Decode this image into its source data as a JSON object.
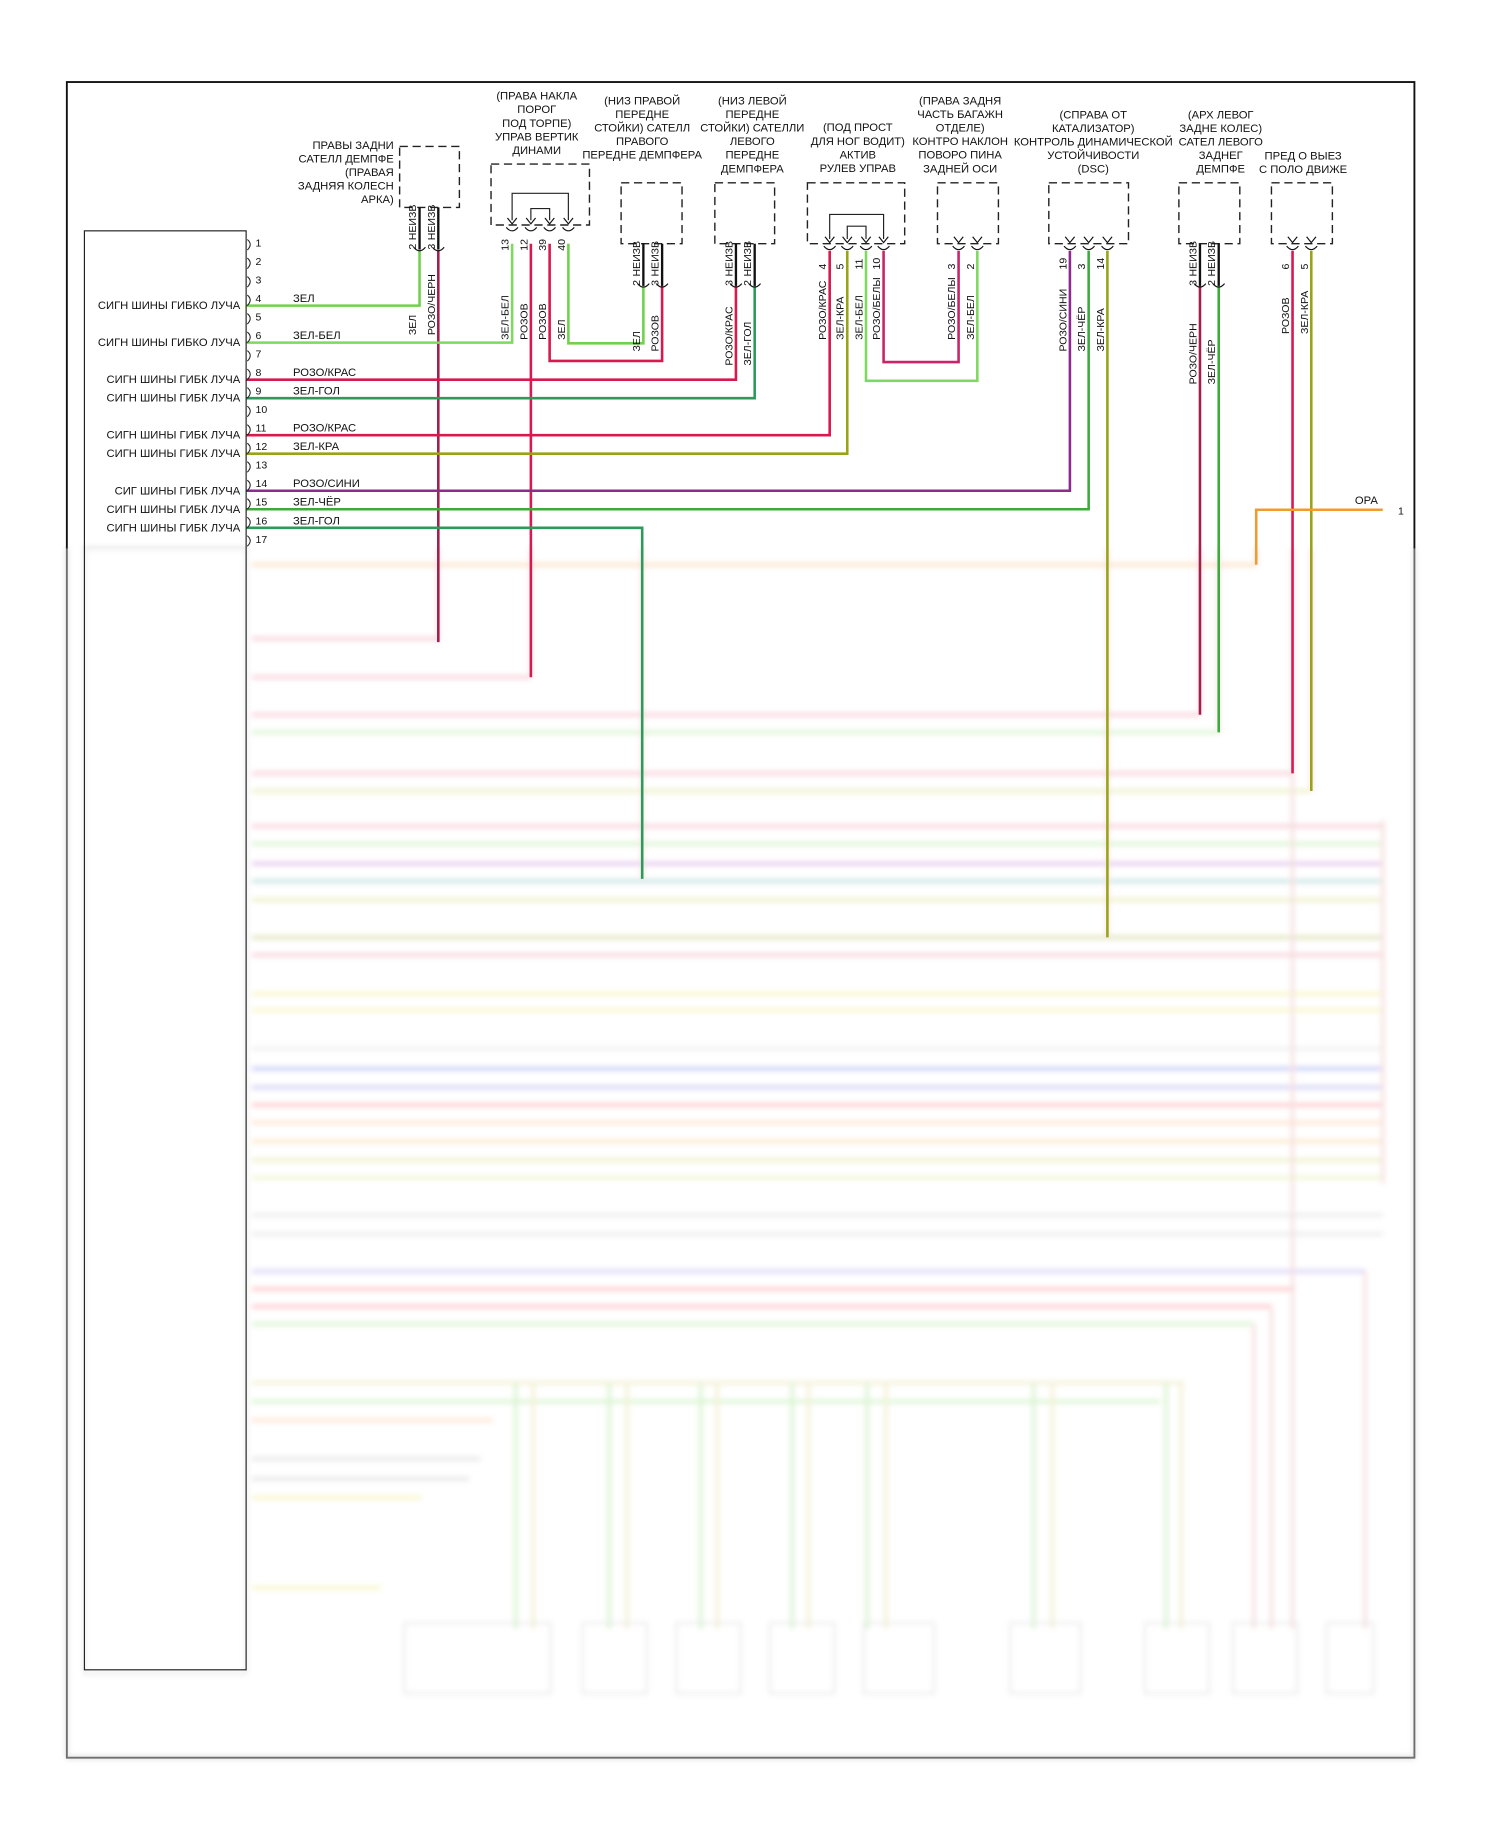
{
  "colors": {
    "ЗЕЛ": "#6fd24a",
    "ЗЕЛ-БЕЛ": "#7fd860",
    "РОЗОВ": "#d8184e",
    "РОЗО/ЧЕРН": "#a51d4a",
    "РОЗО/КРАС": "#d8184e",
    "РОЗО/БЕЛЫ": "#c8246a",
    "ЗЕЛ-ГОЛ": "#2e9a5a",
    "ЗЕЛ-КРА": "#9aa316",
    "РОЗО/СИНИ": "#8e2a8e",
    "ЗЕЛ-ЧЁР": "#3cab3c",
    "ЗЕЛ-ЧЕР": "#3cab3c",
    "ОРА": "#f09a30",
    "НЕИЗВ": "#111111"
  },
  "ecu": {
    "pins": [
      {
        "num": "1",
        "signal": "",
        "wire": ""
      },
      {
        "num": "2",
        "signal": "",
        "wire": ""
      },
      {
        "num": "3",
        "signal": "",
        "wire": ""
      },
      {
        "num": "4",
        "signal": "СИГН ШИНЫ ГИБКО ЛУЧА",
        "wire": "ЗЕЛ"
      },
      {
        "num": "5",
        "signal": "",
        "wire": ""
      },
      {
        "num": "6",
        "signal": "СИГН ШИНЫ ГИБКО ЛУЧА",
        "wire": "ЗЕЛ-БЕЛ"
      },
      {
        "num": "7",
        "signal": "",
        "wire": ""
      },
      {
        "num": "8",
        "signal": "СИГН ШИНЫ ГИБК ЛУЧА",
        "wire": "РОЗО/КРАС"
      },
      {
        "num": "9",
        "signal": "СИГН ШИНЫ ГИБК ЛУЧА",
        "wire": "ЗЕЛ-ГОЛ"
      },
      {
        "num": "10",
        "signal": "",
        "wire": ""
      },
      {
        "num": "11",
        "signal": "СИГН ШИНЫ ГИБК ЛУЧА",
        "wire": "РОЗО/КРАС"
      },
      {
        "num": "12",
        "signal": "СИГН ШИНЫ ГИБК ЛУЧА",
        "wire": "ЗЕЛ-КРА"
      },
      {
        "num": "13",
        "signal": "",
        "wire": ""
      },
      {
        "num": "14",
        "signal": "СИГ ШИНЫ ГИБК ЛУЧА",
        "wire": "РОЗО/СИНИ"
      },
      {
        "num": "15",
        "signal": "СИГН ШИНЫ ГИБК ЛУЧА",
        "wire": "ЗЕЛ-ЧЁР"
      },
      {
        "num": "16",
        "signal": "СИГН ШИНЫ ГИБК ЛУЧА",
        "wire": "ЗЕЛ-ГОЛ"
      },
      {
        "num": "17",
        "signal": "",
        "wire": ""
      }
    ]
  },
  "connectors": [
    {
      "label": [
        "ПРАВЫ ЗАДНИ",
        "САТЕЛЛ ДЕМПФЕ",
        "(ПРАВАЯ",
        "ЗАДНЯЯ КОЛЕСН",
        "АРКА)"
      ],
      "pins": [
        {
          "num": "2",
          "upper": "НЕИЗВ",
          "wire": "ЗЕЛ"
        },
        {
          "num": "3",
          "upper": "НЕИЗВ",
          "wire": "РОЗО/ЧЕРН"
        }
      ]
    },
    {
      "label": [
        "(ПРАВА НАКЛА",
        "ПОРОГ",
        "ПОД ТОРПЕ)",
        "УПРАВ ВЕРТИК",
        "ДИНАМИ"
      ],
      "pins": [
        {
          "num": "13",
          "wire": "ЗЕЛ-БЕЛ"
        },
        {
          "num": "12",
          "wire": "РОЗОВ"
        },
        {
          "num": "39",
          "wire": "РОЗОВ"
        },
        {
          "num": "40",
          "wire": "ЗЕЛ"
        }
      ]
    },
    {
      "label": [
        "(НИЗ ПРАВОЙ",
        "ПЕРЕДНЕ",
        "СТОЙКИ) САТЕЛЛ",
        "ПРАВОГО",
        "ПЕРЕДНЕ ДЕМПФЕРА"
      ],
      "pins": [
        {
          "num": "2",
          "upper": "НЕИЗВ",
          "wire": "ЗЕЛ"
        },
        {
          "num": "3",
          "upper": "НЕИЗВ",
          "wire": "РОЗОВ"
        }
      ]
    },
    {
      "label": [
        "(НИЗ ЛЕВОЙ",
        "ПЕРЕДНЕ",
        "СТОЙКИ) САТЕЛЛИ",
        "ЛЕВОГО",
        "ПЕРЕДНЕ",
        "ДЕМПФЕРА"
      ],
      "pins": [
        {
          "num": "3",
          "upper": "НЕИЗВ",
          "wire": "РОЗО/КРАС"
        },
        {
          "num": "2",
          "upper": "НЕИЗВ",
          "wire": "ЗЕЛ-ГОЛ"
        }
      ]
    },
    {
      "label": [
        "(ПОД ПРОСТ",
        "ДЛЯ НОГ ВОДИТ)",
        "АКТИВ",
        "РУЛЕВ УПРАВ"
      ],
      "pins": [
        {
          "num": "4",
          "wire": "РОЗО/КРАС"
        },
        {
          "num": "5",
          "wire": "ЗЕЛ-КРА"
        },
        {
          "num": "11",
          "wire": "ЗЕЛ-БЕЛ"
        },
        {
          "num": "10",
          "wire": "РОЗО/БЕЛЫ"
        }
      ]
    },
    {
      "label": [
        "(ПРАВА ЗАДНЯ",
        "ЧАСТЬ БАГАЖН",
        "ОТДЕЛЕ)",
        "КОНТРО НАКЛОН",
        "ПОВОРО ПИНА",
        "ЗАДНЕЙ ОСИ"
      ],
      "pins": [
        {
          "num": "3",
          "wire": "РОЗО/БЕЛЫ"
        },
        {
          "num": "2",
          "wire": "ЗЕЛ-БЕЛ"
        }
      ]
    },
    {
      "label": [
        "(СПРАВА ОТ",
        "КАТАЛИЗАТОР)",
        "КОНТРОЛЬ ДИНАМИЧЕСКОЙ",
        "УСТОЙЧИВОСТИ",
        "(DSC)"
      ],
      "pins": [
        {
          "num": "19",
          "wire": "РОЗО/СИНИ"
        },
        {
          "num": "3",
          "wire": "ЗЕЛ-ЧЁР"
        },
        {
          "num": "14",
          "wire": "ЗЕЛ-КРА"
        }
      ]
    },
    {
      "label": [
        "(АРХ ЛЕВОГ",
        "ЗАДНЕ КОЛЕС)",
        "САТЕЛ ЛЕВОГО",
        "ЗАДНЕГ",
        "ДЕМПФЕ"
      ],
      "pins": [
        {
          "num": "3",
          "upper": "НЕИЗВ",
          "wire": "РОЗО/ЧЕРН"
        },
        {
          "num": "2",
          "upper": "НЕИЗВ",
          "wire": "ЗЕЛ-ЧЁР"
        }
      ]
    },
    {
      "label": [
        "ПРЕД О ВЫЕЗ",
        "С ПОЛО ДВИЖЕ"
      ],
      "pins": [
        {
          "num": "6",
          "wire": "РОЗОВ"
        },
        {
          "num": "5",
          "wire": "ЗЕЛ-КРА"
        }
      ]
    }
  ],
  "splice": {
    "wire": "ОРА",
    "num": "1"
  }
}
